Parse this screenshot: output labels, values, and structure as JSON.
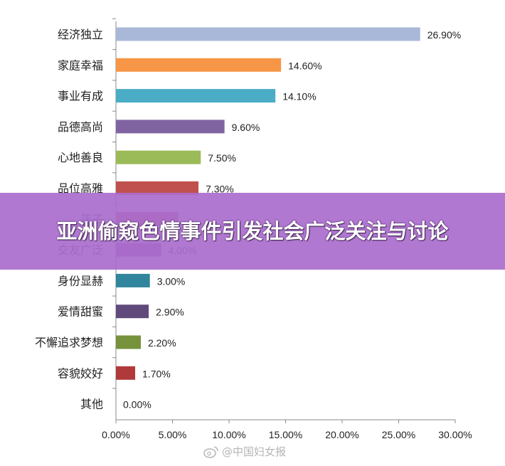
{
  "banner": {
    "title": "亚洲偷窥色情事件引发社会广泛关注与讨论"
  },
  "watermark": {
    "text": "@中国妇女报",
    "icon": "weibo-icon"
  },
  "chart_data": {
    "type": "bar",
    "orientation": "horizontal",
    "categories": [
      "经济独立",
      "家庭幸福",
      "事业有成",
      "品德高尚",
      "心地善良",
      "品位高雅",
      "孩子",
      "交友广泛",
      "身份显赫",
      "爱情甜蜜",
      "不懈追求梦想",
      "容貌姣好",
      "其他"
    ],
    "values": [
      26.9,
      14.6,
      14.1,
      9.6,
      7.5,
      7.3,
      5.5,
      4.0,
      3.0,
      2.9,
      2.2,
      1.7,
      0.0
    ],
    "value_labels": [
      "26.90%",
      "14.60%",
      "14.10%",
      "9.60%",
      "7.50%",
      "7.30%",
      "",
      "4.00%",
      "3.00%",
      "2.90%",
      "2.20%",
      "1.70%",
      "0.00%"
    ],
    "colors": [
      "#a9b8d8",
      "#f79646",
      "#4bacc6",
      "#8064a2",
      "#9bbb59",
      "#c0504d",
      "#c0504d",
      "#9b4a9b",
      "#31859c",
      "#604a7b",
      "#76923c",
      "#b03a3a",
      "#4f81bd"
    ],
    "xlim": [
      0,
      30
    ],
    "x_ticks": [
      "0.00%",
      "5.00%",
      "10.00%",
      "15.00%",
      "20.00%",
      "25.00%",
      "30.00%"
    ],
    "grid": false,
    "legend": "none"
  }
}
